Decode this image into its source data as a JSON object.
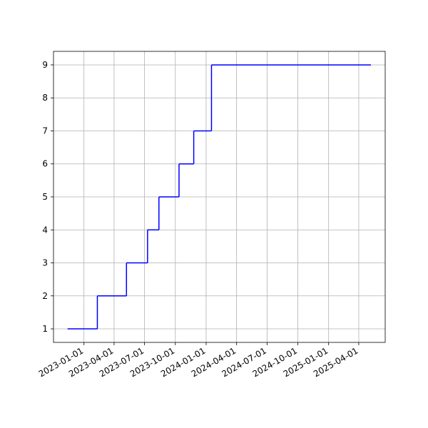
{
  "chart_data": {
    "type": "step",
    "x": [
      "2022-11-13",
      "2023-02-10",
      "2023-05-08",
      "2023-07-10",
      "2023-08-13",
      "2023-10-12",
      "2023-11-25",
      "2024-01-17",
      "2025-05-06"
    ],
    "values": [
      1,
      2,
      3,
      4,
      5,
      6,
      7,
      9,
      9
    ],
    "color": "#0000ff",
    "xlim": [
      "2022-10-02",
      "2025-06-19"
    ],
    "xticks": [
      "2023-01-01",
      "2023-04-01",
      "2023-07-01",
      "2023-10-01",
      "2024-01-01",
      "2024-04-01",
      "2024-07-01",
      "2024-10-01",
      "2025-01-01",
      "2025-04-01"
    ],
    "ylim": [
      0.59,
      9.41
    ],
    "yticks": [
      1,
      2,
      3,
      4,
      5,
      6,
      7,
      8,
      9
    ],
    "grid": true
  }
}
